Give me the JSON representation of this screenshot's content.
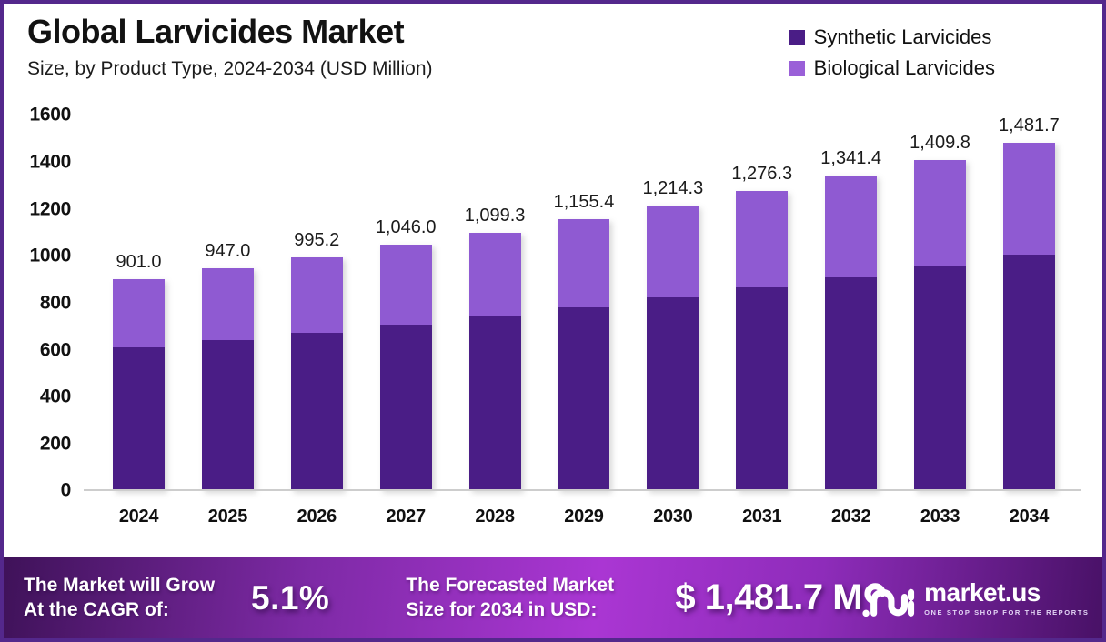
{
  "header": {
    "title": "Global Larvicides Market",
    "subtitle": "Size, by Product Type, 2024-2034 (USD Million)"
  },
  "legend": {
    "items": [
      {
        "label": "Synthetic Larvicides",
        "color": "#4a1d86"
      },
      {
        "label": "Biological Larvicides",
        "color": "#9a60d8"
      }
    ]
  },
  "chart_data": {
    "type": "bar",
    "stacked": true,
    "title": "Global Larvicides Market",
    "subtitle": "Size, by Product Type, 2024-2034 (USD Million)",
    "xlabel": "",
    "ylabel": "USD Million",
    "ylim": [
      0,
      1600
    ],
    "y_ticks": [
      0,
      200,
      400,
      600,
      800,
      1000,
      1200,
      1400,
      1600
    ],
    "grid": false,
    "legend_position": "top-right",
    "categories": [
      "2024",
      "2025",
      "2026",
      "2027",
      "2028",
      "2029",
      "2030",
      "2031",
      "2032",
      "2033",
      "2034"
    ],
    "series": [
      {
        "name": "Synthetic Larvicides",
        "color": "#4a1d86",
        "values": [
          610,
          641,
          674,
          708,
          744,
          782,
          822,
          864,
          908,
          955,
          1003.6
        ]
      },
      {
        "name": "Biological Larvicides",
        "color": "#8f5ad2",
        "values": [
          291,
          306,
          321.2,
          338,
          355.3,
          373.4,
          392.3,
          412.3,
          433.4,
          454.8,
          478.1
        ]
      }
    ],
    "totals": [
      901.0,
      947.0,
      995.2,
      1046.0,
      1099.3,
      1155.4,
      1214.3,
      1276.3,
      1341.4,
      1409.8,
      1481.7
    ],
    "total_labels": [
      "901.0",
      "947.0",
      "995.2",
      "1,046.0",
      "1,099.3",
      "1,155.4",
      "1,214.3",
      "1,276.3",
      "1,341.4",
      "1,409.8",
      "1,481.7"
    ]
  },
  "banner": {
    "cagr_label_line1": "The Market will Grow",
    "cagr_label_line2": "At the CAGR of:",
    "cagr_value": "5.1%",
    "forecast_label_line1": "The Forecasted Market",
    "forecast_label_line2": "Size for 2034 in USD:",
    "forecast_value": "$ 1,481.7 M",
    "brand": {
      "name": "market.us",
      "tagline": "ONE STOP SHOP FOR THE REPORTS"
    }
  },
  "colors": {
    "synthetic": "#4a1d86",
    "biological": "#8f5ad2",
    "frame_border": "#54288c",
    "axis_line": "#cdcdcd",
    "banner_gradient": [
      "#3f1259",
      "#aa36d3",
      "#481166"
    ]
  }
}
